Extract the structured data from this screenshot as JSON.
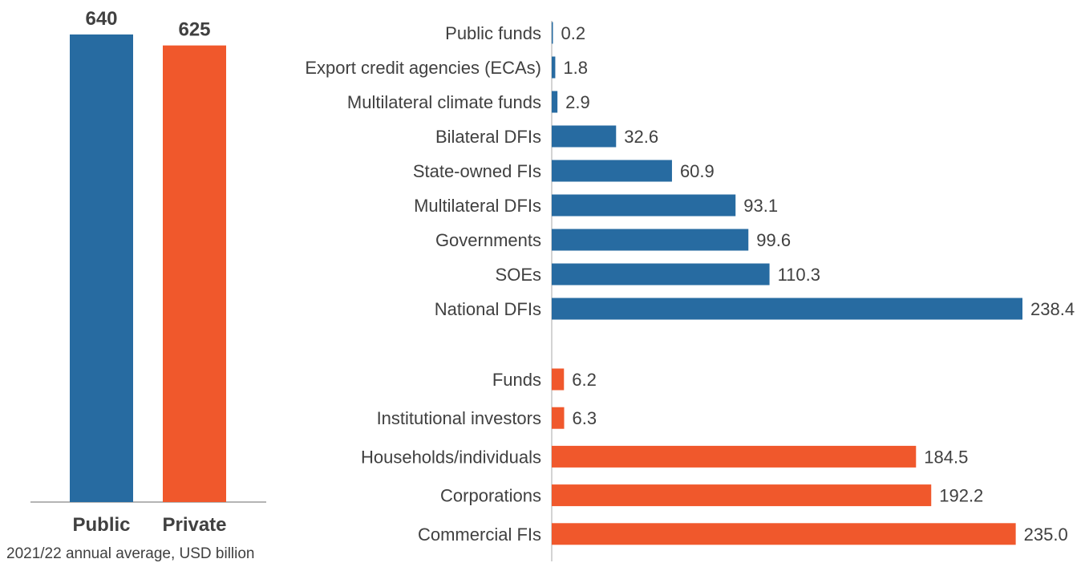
{
  "caption": "2021/22 annual average, USD billion",
  "colors": {
    "public": "#276ba1",
    "private": "#f0582c",
    "axis": "#888888",
    "text": "#404040"
  },
  "chart_data": [
    {
      "type": "bar",
      "orientation": "vertical",
      "categories": [
        "Public",
        "Private"
      ],
      "values": [
        640,
        625
      ],
      "value_labels": [
        "640",
        "625"
      ],
      "ylim": [
        0,
        640
      ]
    },
    {
      "type": "bar",
      "orientation": "horizontal",
      "xlim": [
        0,
        238.4
      ],
      "groups": [
        {
          "key": "public",
          "categories": [
            "Public funds",
            "Export credit agencies (ECAs)",
            "Multilateral climate funds",
            "Bilateral DFIs",
            "State-owned FIs",
            "Multilateral DFIs",
            "Governments",
            "SOEs",
            "National DFIs"
          ],
          "values": [
            0.2,
            1.8,
            2.9,
            32.6,
            60.9,
            93.1,
            99.6,
            110.3,
            238.4
          ],
          "value_labels": [
            "0.2",
            "1.8",
            "2.9",
            "32.6",
            "60.9",
            "93.1",
            "99.6",
            "110.3",
            "238.4"
          ]
        },
        {
          "key": "private",
          "categories": [
            "Funds",
            "Institutional investors",
            "Households/individuals",
            "Corporations",
            "Commercial FIs"
          ],
          "values": [
            6.2,
            6.3,
            184.5,
            192.2,
            235.0
          ],
          "value_labels": [
            "6.2",
            "6.3",
            "184.5",
            "192.2",
            "235.0"
          ]
        }
      ]
    }
  ]
}
